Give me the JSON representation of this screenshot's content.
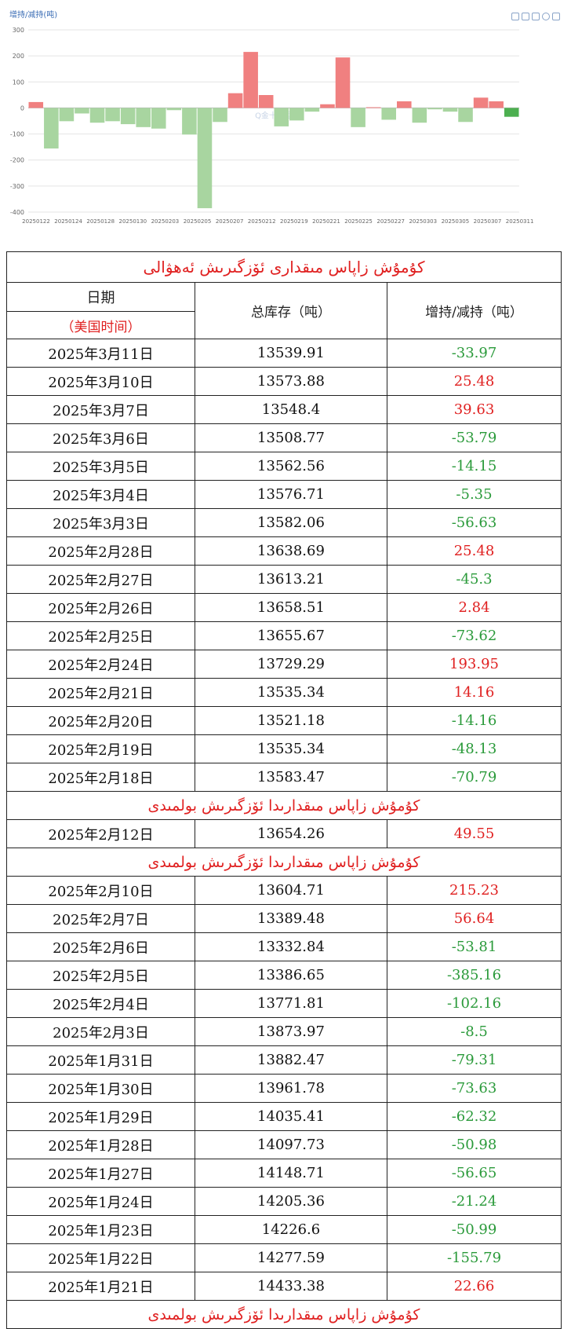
{
  "chart_data": {
    "type": "bar",
    "title": "增持/减持(吨)",
    "ylim": [
      -400,
      300
    ],
    "yticks": [
      300,
      200,
      100,
      0,
      -100,
      -200,
      -300,
      -400
    ],
    "xtick_labels": [
      "20250122",
      "20250124",
      "20250128",
      "20250130",
      "20250203",
      "20250205",
      "20250207",
      "20250212",
      "20250219",
      "20250221",
      "20250225",
      "20250227",
      "20250303",
      "20250305",
      "20250307",
      "20250311"
    ],
    "watermark": "Q金十数据",
    "categories": [
      "20250121",
      "20250122",
      "20250123",
      "20250124",
      "20250127",
      "20250128",
      "20250129",
      "20250130",
      "20250131",
      "20250203",
      "20250204",
      "20250205",
      "20250206",
      "20250207",
      "20250210",
      "20250212",
      "20250218",
      "20250219",
      "20250220",
      "20250221",
      "20250224",
      "20250225",
      "20250226",
      "20250227",
      "20250228",
      "20250303",
      "20250304",
      "20250305",
      "20250306",
      "20250307",
      "20250310",
      "20250311"
    ],
    "values": [
      22.66,
      -155.79,
      -50.99,
      -21.24,
      -56.65,
      -50.98,
      -62.32,
      -73.63,
      -79.31,
      -8.5,
      -102.16,
      -385.16,
      -53.81,
      56.64,
      215.23,
      49.55,
      -70.79,
      -48.13,
      -14.16,
      14.16,
      193.95,
      -73.62,
      2.84,
      -45.3,
      25.48,
      -56.63,
      -5.35,
      -14.15,
      -53.79,
      39.63,
      25.48,
      -33.97
    ],
    "colors": {
      "positive": "#f08080",
      "negative": "#a8d5a0",
      "last": "#4caf50"
    },
    "grid": true
  },
  "table": {
    "title": "كۇمۇش زاپاس مىقدارى ئۆزگىرىش ئەھۋالى",
    "header": {
      "date": "日期",
      "date_sub": "（美国时间）",
      "total": "总库存（吨）",
      "change": "增持/减持（吨）"
    },
    "notice": "كۇمۇش زاپاس مىقدارىدا ئۆزگىرىش بولمىدى",
    "rows": [
      {
        "date": "2025年3月11日",
        "total": "13539.91",
        "change": "-33.97"
      },
      {
        "date": "2025年3月10日",
        "total": "13573.88",
        "change": "25.48"
      },
      {
        "date": "2025年3月7日",
        "total": "13548.4",
        "change": "39.63"
      },
      {
        "date": "2025年3月6日",
        "total": "13508.77",
        "change": "-53.79"
      },
      {
        "date": "2025年3月5日",
        "total": "13562.56",
        "change": "-14.15"
      },
      {
        "date": "2025年3月4日",
        "total": "13576.71",
        "change": "-5.35"
      },
      {
        "date": "2025年3月3日",
        "total": "13582.06",
        "change": "-56.63"
      },
      {
        "date": "2025年2月28日",
        "total": "13638.69",
        "change": "25.48"
      },
      {
        "date": "2025年2月27日",
        "total": "13613.21",
        "change": "-45.3"
      },
      {
        "date": "2025年2月26日",
        "total": "13658.51",
        "change": "2.84"
      },
      {
        "date": "2025年2月25日",
        "total": "13655.67",
        "change": "-73.62"
      },
      {
        "date": "2025年2月24日",
        "total": "13729.29",
        "change": "193.95"
      },
      {
        "date": "2025年2月21日",
        "total": "13535.34",
        "change": "14.16"
      },
      {
        "date": "2025年2月20日",
        "total": "13521.18",
        "change": "-14.16"
      },
      {
        "date": "2025年2月19日",
        "total": "13535.34",
        "change": "-48.13"
      },
      {
        "date": "2025年2月18日",
        "total": "13583.47",
        "change": "-70.79"
      },
      {
        "notice": true
      },
      {
        "date": "2025年2月12日",
        "total": "13654.26",
        "change": "49.55"
      },
      {
        "notice": true
      },
      {
        "date": "2025年2月10日",
        "total": "13604.71",
        "change": "215.23"
      },
      {
        "date": "2025年2月7日",
        "total": "13389.48",
        "change": "56.64"
      },
      {
        "date": "2025年2月6日",
        "total": "13332.84",
        "change": "-53.81"
      },
      {
        "date": "2025年2月5日",
        "total": "13386.65",
        "change": "-385.16"
      },
      {
        "date": "2025年2月4日",
        "total": "13771.81",
        "change": "-102.16"
      },
      {
        "date": "2025年2月3日",
        "total": "13873.97",
        "change": "-8.5"
      },
      {
        "date": "2025年1月31日",
        "total": "13882.47",
        "change": "-79.31"
      },
      {
        "date": "2025年1月30日",
        "total": "13961.78",
        "change": "-73.63"
      },
      {
        "date": "2025年1月29日",
        "total": "14035.41",
        "change": "-62.32"
      },
      {
        "date": "2025年1月28日",
        "total": "14097.73",
        "change": "-50.98"
      },
      {
        "date": "2025年1月27日",
        "total": "14148.71",
        "change": "-56.65"
      },
      {
        "date": "2025年1月24日",
        "total": "14205.36",
        "change": "-21.24"
      },
      {
        "date": "2025年1月23日",
        "total": "14226.6",
        "change": "-50.99"
      },
      {
        "date": "2025年1月22日",
        "total": "14277.59",
        "change": "-155.79"
      },
      {
        "date": "2025年1月21日",
        "total": "14433.38",
        "change": "22.66"
      },
      {
        "notice": true
      }
    ]
  },
  "toolbar": {
    "icons": [
      "line-chart-icon",
      "bar-chart-icon",
      "download-icon",
      "close-icon",
      "document-icon"
    ]
  }
}
